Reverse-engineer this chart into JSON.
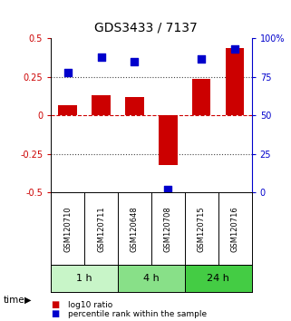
{
  "title": "GDS3433 / 7137",
  "samples": [
    "GSM120710",
    "GSM120711",
    "GSM120648",
    "GSM120708",
    "GSM120715",
    "GSM120716"
  ],
  "log10_ratio": [
    0.07,
    0.13,
    0.12,
    -0.32,
    0.24,
    0.44
  ],
  "percentile_rank": [
    78,
    88,
    85,
    2,
    87,
    93
  ],
  "groups": [
    {
      "label": "1 h",
      "indices": [
        0,
        1
      ],
      "color": "#c8f5c8"
    },
    {
      "label": "4 h",
      "indices": [
        2,
        3
      ],
      "color": "#88e088"
    },
    {
      "label": "24 h",
      "indices": [
        4,
        5
      ],
      "color": "#44cc44"
    }
  ],
  "bar_color": "#cc0000",
  "dot_color": "#0000cc",
  "left_axis_color": "#cc0000",
  "right_axis_color": "#0000cc",
  "ylim_left": [
    -0.5,
    0.5
  ],
  "ylim_right": [
    0,
    100
  ],
  "yticks_left": [
    -0.5,
    -0.25,
    0,
    0.25,
    0.5
  ],
  "yticks_right": [
    0,
    25,
    50,
    75,
    100
  ],
  "ytick_labels_left": [
    "-0.5",
    "-0.25",
    "0",
    "0.25",
    "0.5"
  ],
  "ytick_labels_right": [
    "0",
    "25",
    "50",
    "75",
    "100%"
  ],
  "hline_dotted": [
    -0.25,
    0.25
  ],
  "hline_dashed": [
    0
  ],
  "bg_color": "#ffffff",
  "label_box_color": "#d0d0d0",
  "bar_width": 0.55,
  "dot_size": 28
}
